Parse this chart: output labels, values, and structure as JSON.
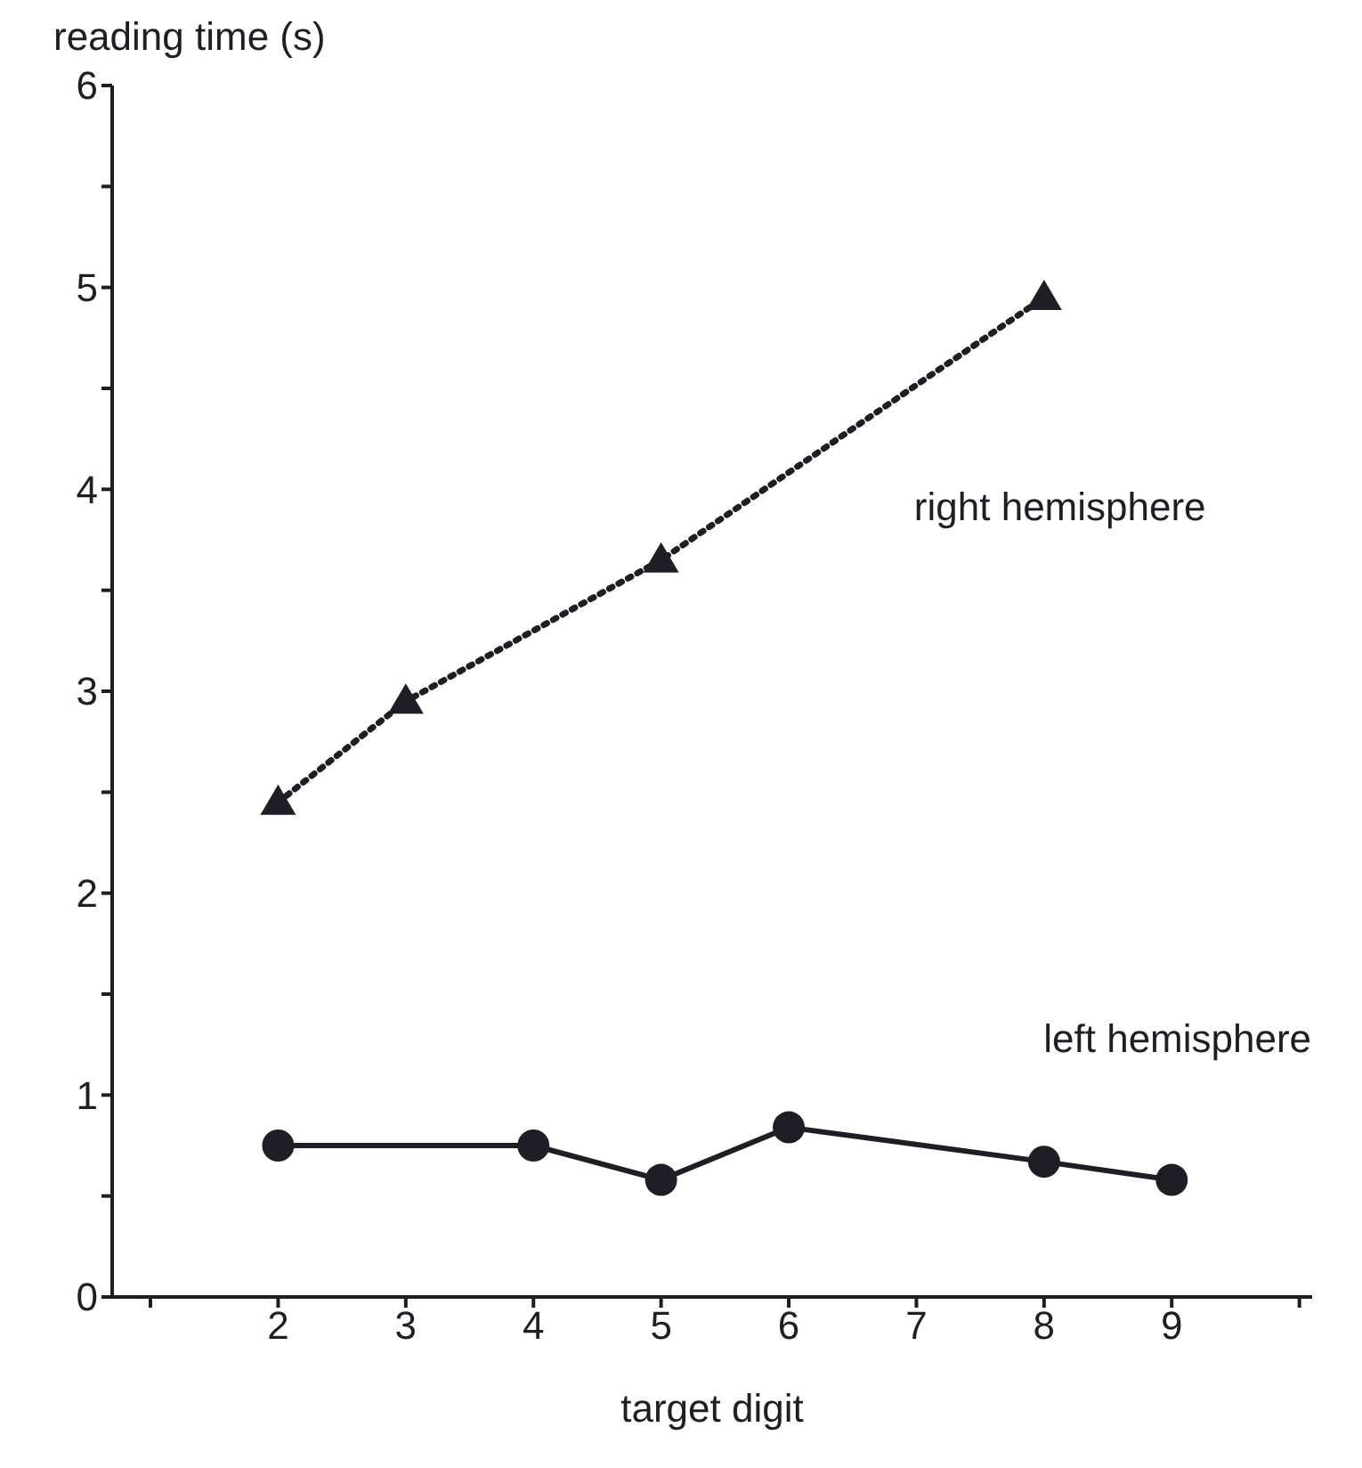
{
  "chart_data": {
    "type": "line",
    "xlabel": "target digit",
    "ylabel": "reading time (s)",
    "xlim": [
      0.7,
      10.1
    ],
    "xticks": [
      {
        "value": 1,
        "label": null
      },
      2,
      3,
      4,
      5,
      6,
      7,
      8,
      9,
      {
        "value": 10,
        "label": null
      }
    ],
    "ylim": [
      0,
      6
    ],
    "yticks": [
      0,
      {
        "value": 0.5,
        "label": null
      },
      1,
      {
        "value": 1.5,
        "label": null
      },
      2,
      {
        "value": 2.5,
        "label": null
      },
      3,
      {
        "value": 3.5,
        "label": null
      },
      4,
      {
        "value": 4.5,
        "label": null
      },
      5,
      {
        "value": 5.5,
        "label": null
      },
      6
    ],
    "grid": false,
    "legend": false,
    "series": [
      {
        "name": "right hemisphere",
        "color": "#1e1e24",
        "x": [
          2,
          3,
          5,
          8
        ],
        "values": [
          2.45,
          2.95,
          3.65,
          4.95
        ],
        "marker": "triangle",
        "line_style": "dotted"
      },
      {
        "name": "left hemisphere",
        "color": "#1e1e24",
        "x": [
          2,
          4,
          5,
          6,
          8,
          9
        ],
        "values": [
          0.75,
          0.75,
          0.58,
          0.84,
          0.67,
          0.58
        ],
        "marker": "circle",
        "line_style": "solid"
      }
    ]
  }
}
